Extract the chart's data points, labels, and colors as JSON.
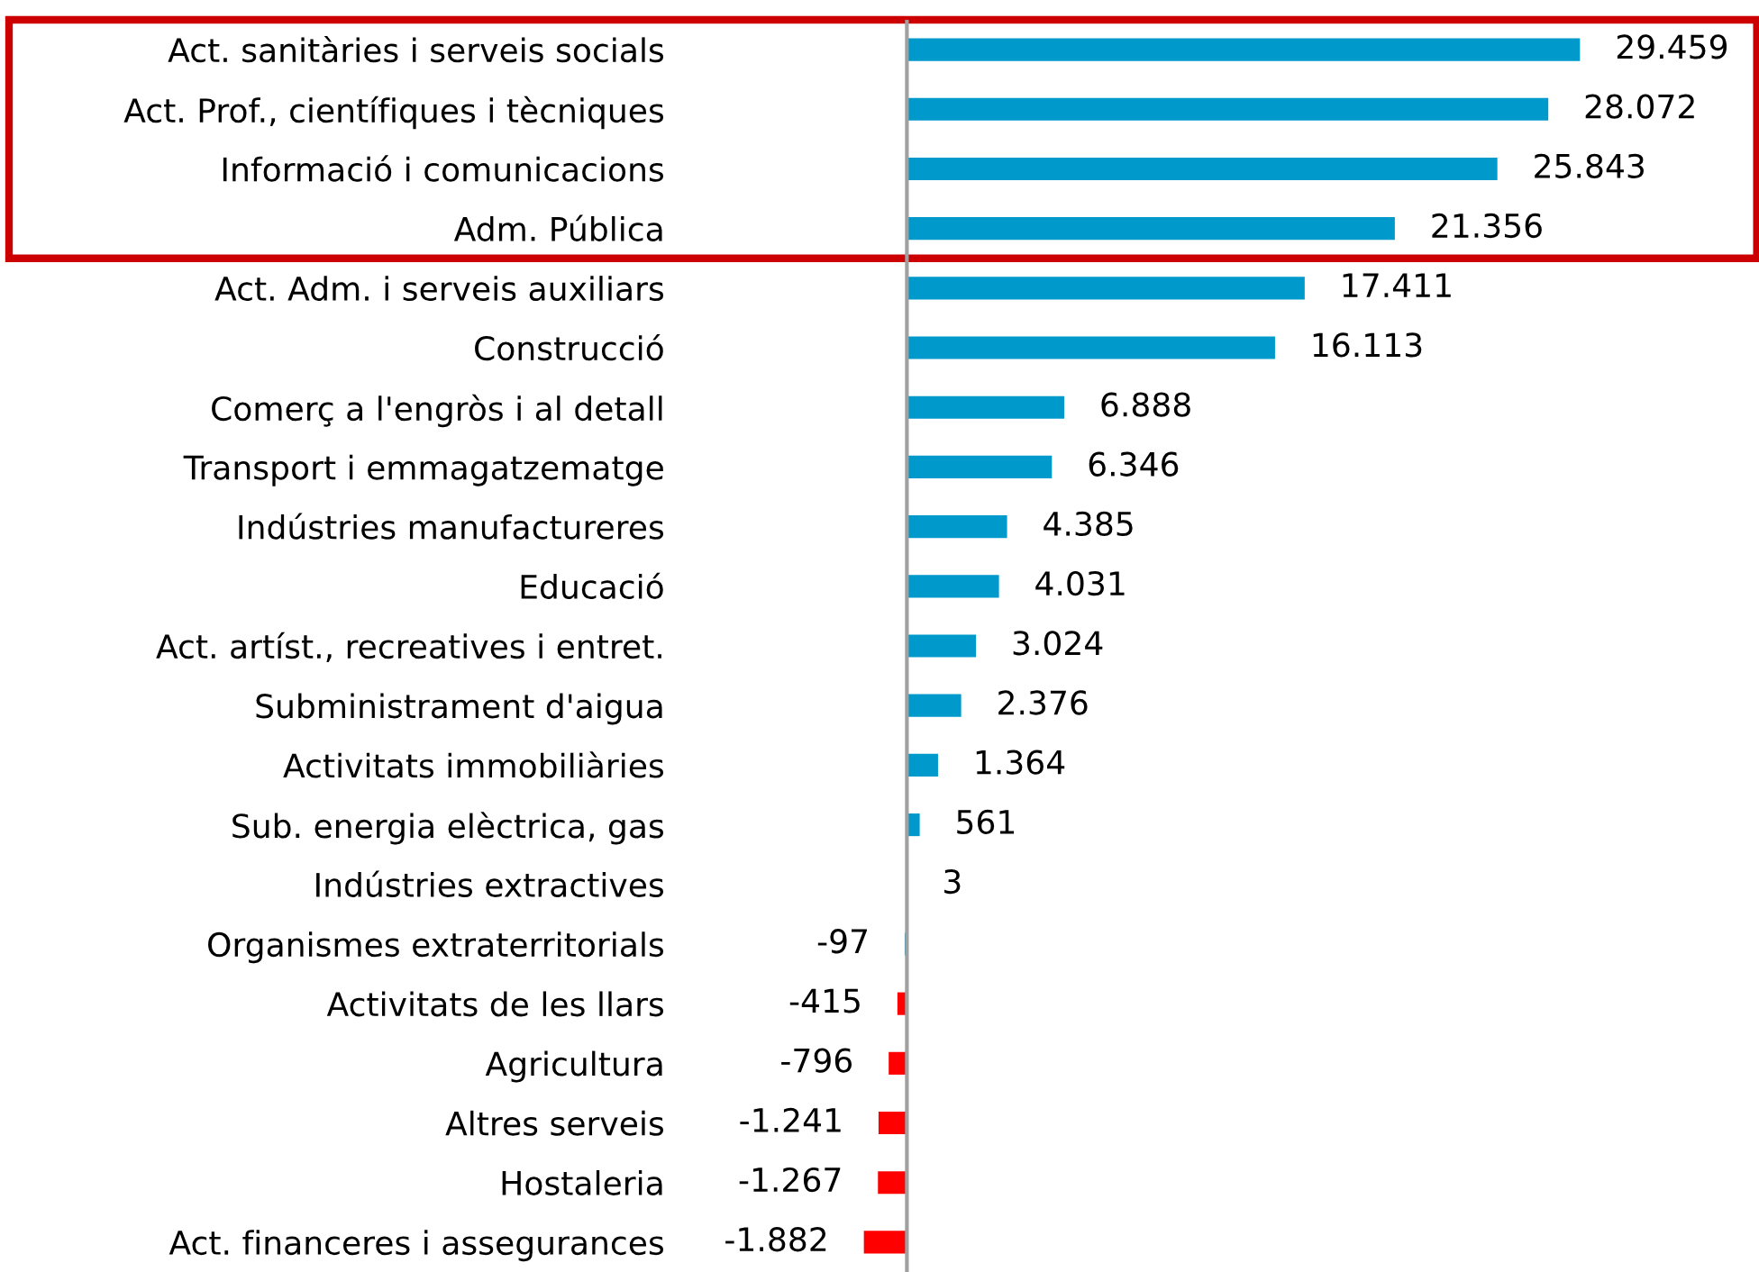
{
  "chart_data": {
    "type": "bar",
    "orientation": "horizontal",
    "categories": [
      "Act. sanitàries i serveis socials",
      "Act. Prof., científiques i tècniques",
      "Informació i comunicacions",
      "Adm. Pública",
      "Act. Adm. i serveis auxiliars",
      "Construcció",
      "Comerç a l'engròs i al detall",
      "Transport i emmagatzematge",
      "Indústries manufactureres",
      "Educació",
      "Act. artíst., recreatives i entret.",
      "Subministrament d'aigua",
      "Activitats immobiliàries",
      "Sub. energia elèctrica, gas",
      "Indústries extractives",
      "Organismes extraterritorials",
      "Activitats de les llars",
      "Agricultura",
      "Altres serveis",
      "Hostaleria",
      "Act. financeres i assegurances"
    ],
    "values": [
      29459,
      28072,
      25843,
      21356,
      17411,
      16113,
      6888,
      6346,
      4385,
      4031,
      3024,
      2376,
      1364,
      561,
      3,
      -97,
      -415,
      -796,
      -1241,
      -1267,
      -1882
    ],
    "value_labels": [
      "29.459",
      "28.072",
      "25.843",
      "21.356",
      "17.411",
      "16.113",
      "6.888",
      "6.346",
      "4.385",
      "4.031",
      "3.024",
      "2.376",
      "1.364",
      "561",
      "3",
      "-97",
      "-415",
      "-796",
      "-1.241",
      "-1.267",
      "-1.882"
    ],
    "colors": [
      "#0099cc",
      "#0099cc",
      "#0099cc",
      "#0099cc",
      "#0099cc",
      "#0099cc",
      "#0099cc",
      "#0099cc",
      "#0099cc",
      "#0099cc",
      "#0099cc",
      "#0099cc",
      "#0099cc",
      "#0099cc",
      "#0099cc",
      "#0099cc",
      "#ff0000",
      "#ff0000",
      "#ff0000",
      "#ff0000",
      "#ff0000"
    ],
    "tick_labels": "y",
    "grid": false,
    "legend": false
  }
}
